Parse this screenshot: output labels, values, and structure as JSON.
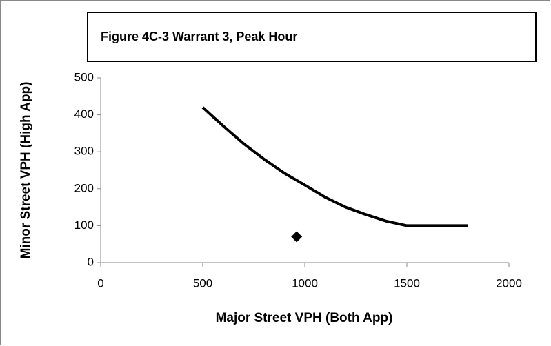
{
  "chart_data": {
    "type": "line",
    "title": "Figure 4C-3 Warrant 3, Peak Hour",
    "xlabel": "Major Street VPH (Both App)",
    "ylabel": "Minor Street VPH (High App)",
    "xlim": [
      0,
      2000
    ],
    "xticks": [
      0,
      500,
      1000,
      1500,
      2000
    ],
    "ylim": [
      0,
      500
    ],
    "yticks": [
      0,
      100,
      200,
      300,
      400,
      500
    ],
    "grid": false,
    "series": [
      {
        "style": "line",
        "color": "#000000",
        "x": [
          500,
          600,
          700,
          800,
          900,
          1000,
          1100,
          1200,
          1300,
          1400,
          1500,
          1600,
          1700,
          1800
        ],
        "values": [
          420,
          370,
          322,
          280,
          242,
          210,
          177,
          150,
          130,
          112,
          100,
          100,
          100,
          100
        ]
      },
      {
        "style": "marker",
        "color": "#000000",
        "x": [
          960
        ],
        "values": [
          70
        ]
      }
    ]
  }
}
